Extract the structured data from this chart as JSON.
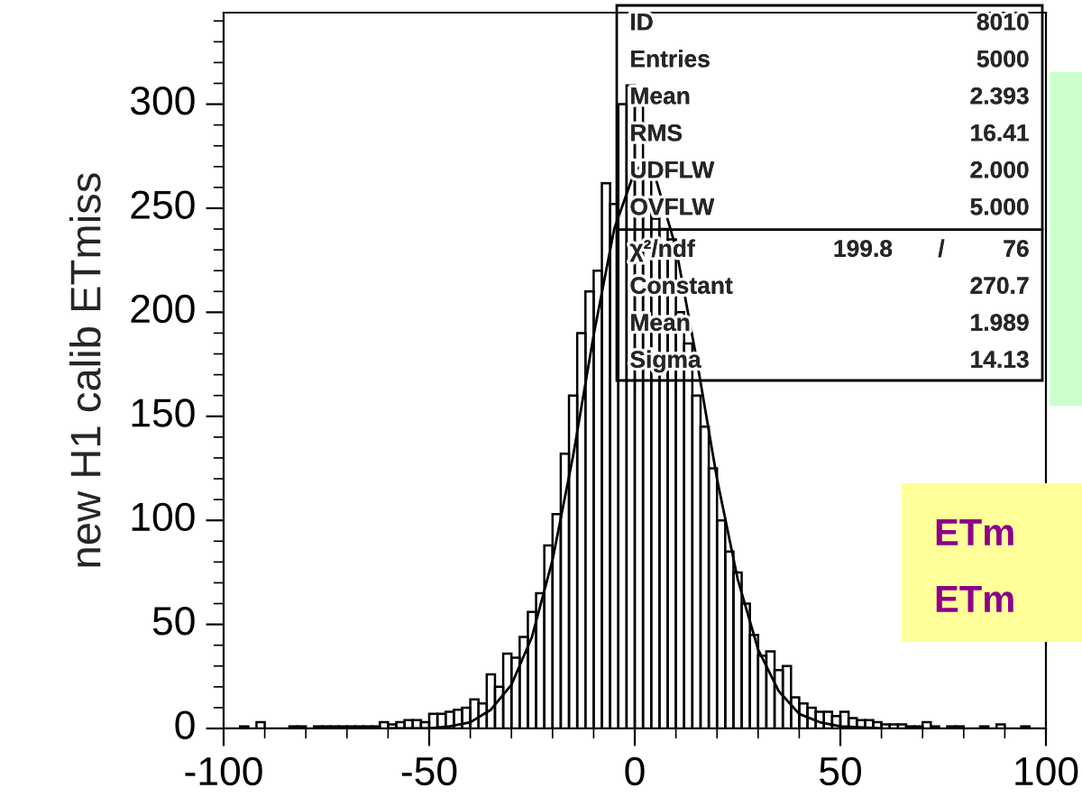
{
  "chart_data": {
    "type": "histogram",
    "ylabel": "new H1 calib ETmiss",
    "color": "#000000",
    "bins": [
      -100,
      -98,
      -96,
      -94,
      -92,
      -90,
      -88,
      -86,
      -84,
      -82,
      -80,
      -78,
      -76,
      -74,
      -72,
      -70,
      -68,
      -66,
      -64,
      -62,
      -60,
      -58,
      -56,
      -54,
      -52,
      -50,
      -48,
      -46,
      -44,
      -42,
      -40,
      -38,
      -36,
      -34,
      -32,
      -30,
      -28,
      -26,
      -24,
      -22,
      -20,
      -18,
      -16,
      -14,
      -12,
      -10,
      -8,
      -6,
      -4,
      -2,
      0,
      2,
      4,
      6,
      8,
      10,
      12,
      14,
      16,
      18,
      20,
      22,
      24,
      26,
      28,
      30,
      32,
      34,
      36,
      38,
      40,
      42,
      44,
      46,
      48,
      50,
      52,
      54,
      56,
      58,
      60,
      62,
      64,
      66,
      68,
      70,
      72,
      74,
      76,
      78,
      80,
      82,
      84,
      86,
      88,
      90,
      92,
      94,
      96,
      98,
      100
    ],
    "values": [
      0,
      0,
      1,
      0,
      3,
      0,
      0,
      0,
      1,
      1,
      0,
      1,
      1,
      1,
      1,
      1,
      1,
      1,
      1,
      3,
      2,
      3,
      4,
      4,
      3,
      7,
      7,
      8,
      9,
      10,
      14,
      12,
      26,
      20,
      36,
      34,
      44,
      56,
      65,
      88,
      103,
      132,
      160,
      190,
      210,
      220,
      262,
      252,
      300,
      309,
      300,
      265,
      245,
      240,
      235,
      200,
      185,
      160,
      145,
      125,
      100,
      85,
      75,
      60,
      45,
      35,
      37,
      28,
      30,
      15,
      12,
      10,
      8,
      8,
      6,
      8,
      5,
      4,
      4,
      3,
      2,
      2,
      2,
      1,
      1,
      3,
      1,
      0,
      1,
      1,
      0,
      0,
      1,
      0,
      2,
      0,
      0,
      1,
      0,
      0
    ],
    "series": [
      {
        "type": "line",
        "color": "#000000",
        "x": [
          -60,
          -50,
          -45,
          -40,
          -35,
          -30,
          -25,
          -20,
          -15,
          -10,
          -5,
          0,
          2,
          5,
          10,
          15,
          20,
          25,
          30,
          35,
          40,
          45,
          50,
          60
        ],
        "values": [
          0,
          0,
          1,
          3,
          9,
          21,
          44,
          81,
          131,
          189,
          240,
          268,
          271,
          265,
          231,
          178,
          120,
          72,
          38,
          18,
          7,
          3,
          1,
          0
        ]
      }
    ],
    "xlim": [
      -100,
      100
    ],
    "xticks": [
      -100,
      -50,
      0,
      50,
      100
    ],
    "ylim": [
      0,
      344
    ],
    "yticks": [
      0,
      50,
      100,
      150,
      200,
      250,
      300
    ],
    "grid": false,
    "annotations": [
      "ID",
      "8010",
      "Entries",
      "5000",
      "Mean",
      "2.393",
      "RMS",
      "16.41",
      "UDFLW",
      "2.000",
      "OVFLW",
      "5.000",
      "χ²/ndf",
      "199.8",
      "/",
      "76",
      "Constant",
      "270.7",
      "Mean",
      "1.989",
      "Sigma",
      "14.13",
      "ETm",
      "ETm"
    ]
  }
}
